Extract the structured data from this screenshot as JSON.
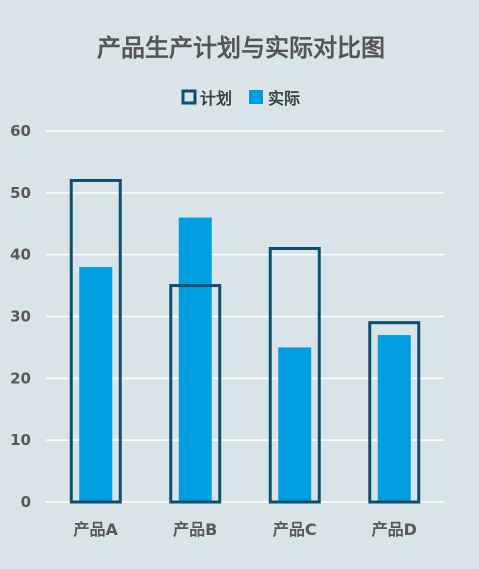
{
  "chart_data": {
    "type": "bar",
    "title": "产品生产计划与实际对比图",
    "categories": [
      "产品A",
      "产品B",
      "产品C",
      "产品D"
    ],
    "series": [
      {
        "name": "计划",
        "values": [
          52,
          35,
          41,
          29
        ],
        "style": "outline",
        "color": "#0f4e6c"
      },
      {
        "name": "实际",
        "values": [
          38,
          46,
          25,
          27
        ],
        "style": "filled",
        "color": "#009ee0"
      }
    ],
    "ylim": [
      0,
      60
    ],
    "yticks": [
      0,
      10,
      20,
      30,
      40,
      50,
      60
    ],
    "grid": true,
    "legend": "top-center",
    "background": "#d9e4e8",
    "gridline_color": "#ffffff"
  }
}
